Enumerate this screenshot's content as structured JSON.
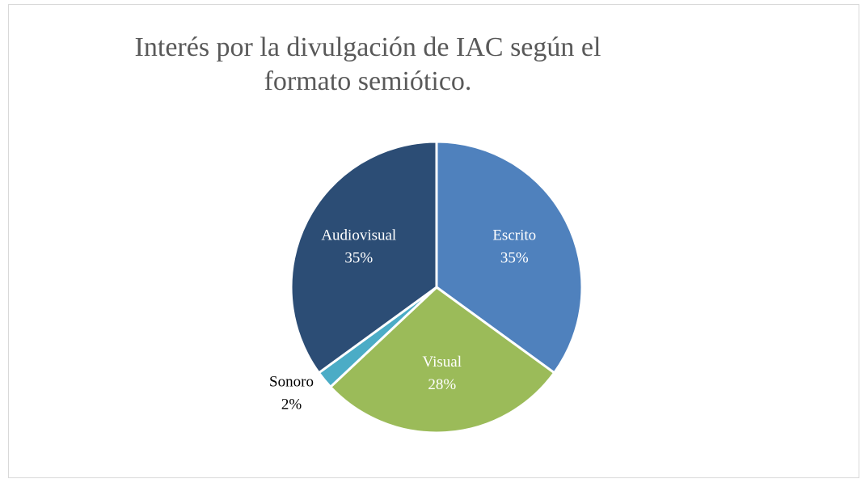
{
  "chart_data": {
    "type": "pie",
    "title": "Interés por la divulgación de IAC según el formato semiótico.",
    "categories": [
      "Escrito",
      "Visual",
      "Sonoro",
      "Audiovisual"
    ],
    "values": [
      35,
      28,
      2,
      35
    ],
    "value_labels": [
      "35%",
      "28%",
      "2%",
      "35%"
    ],
    "colors": [
      "#4f81bd",
      "#9bbb59",
      "#4bacc6",
      "#2c4d75"
    ]
  }
}
